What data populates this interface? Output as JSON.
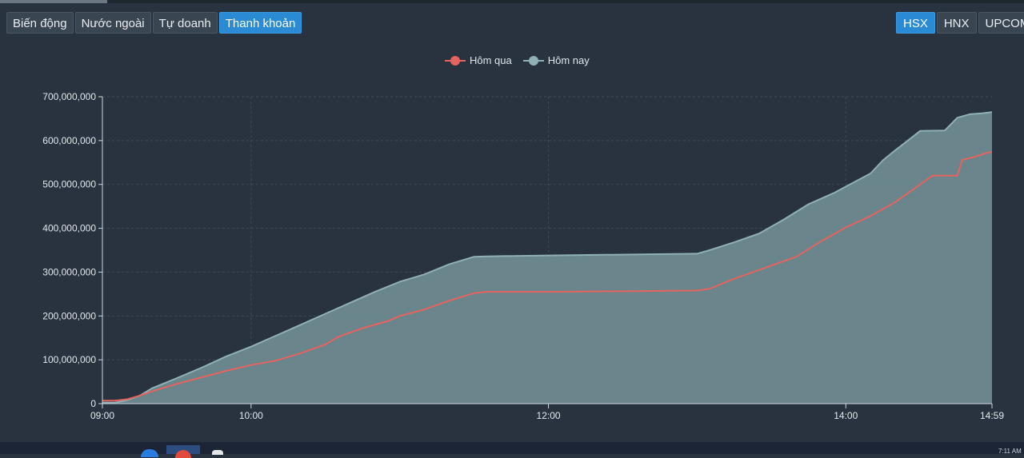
{
  "tabs": [
    {
      "label": "Biến động",
      "active": false
    },
    {
      "label": "Nước ngoài",
      "active": false
    },
    {
      "label": "Tự doanh",
      "active": false
    },
    {
      "label": "Thanh khoản",
      "active": true
    }
  ],
  "exchanges": [
    {
      "label": "HSX",
      "active": true
    },
    {
      "label": "HNX",
      "active": false
    },
    {
      "label": "UPCOM",
      "active": false
    }
  ],
  "clock": "7:11 AM",
  "colors": {
    "background": "#29323f",
    "active_button": "#2a8ad4",
    "today_line": "#8fb1b5",
    "today_fill": "#6e8a90",
    "yesterday_line": "#e5645f",
    "grid": "#3f4a58"
  },
  "chart_data": {
    "type": "area",
    "legend": [
      "Hôm qua",
      "Hôm nay"
    ],
    "legend_position": "top-center",
    "grid": true,
    "x_ticks": [
      "09:00",
      "10:00",
      "12:00",
      "14:00",
      "14:59"
    ],
    "y_ticks": [
      "0",
      "100,000,000",
      "200,000,000",
      "300,000,000",
      "400,000,000",
      "500,000,000",
      "600,000,000",
      "700,000,000"
    ],
    "xlim": [
      "09:00",
      "14:59"
    ],
    "ylim": [
      0,
      700000000
    ],
    "series": [
      {
        "name": "Hôm qua",
        "color": "#e5645f",
        "points": [
          [
            "09:00",
            7000000
          ],
          [
            "09:05",
            7000000
          ],
          [
            "09:10",
            10000000
          ],
          [
            "09:15",
            18000000
          ],
          [
            "09:20",
            28000000
          ],
          [
            "09:30",
            45000000
          ],
          [
            "09:40",
            60000000
          ],
          [
            "09:50",
            75000000
          ],
          [
            "10:00",
            88000000
          ],
          [
            "10:10",
            98000000
          ],
          [
            "10:20",
            115000000
          ],
          [
            "10:30",
            135000000
          ],
          [
            "10:35",
            152000000
          ],
          [
            "10:45",
            172000000
          ],
          [
            "10:55",
            188000000
          ],
          [
            "11:00",
            200000000
          ],
          [
            "11:10",
            215000000
          ],
          [
            "11:20",
            235000000
          ],
          [
            "11:30",
            252000000
          ],
          [
            "11:35",
            255000000
          ],
          [
            "12:00",
            255000000
          ],
          [
            "13:00",
            258000000
          ],
          [
            "13:05",
            262000000
          ],
          [
            "13:15",
            285000000
          ],
          [
            "13:30",
            315000000
          ],
          [
            "13:40",
            335000000
          ],
          [
            "13:50",
            370000000
          ],
          [
            "14:00",
            402000000
          ],
          [
            "14:10",
            428000000
          ],
          [
            "14:20",
            460000000
          ],
          [
            "14:25",
            480000000
          ],
          [
            "14:30",
            500000000
          ],
          [
            "14:35",
            520000000
          ],
          [
            "14:45",
            520000000
          ],
          [
            "14:47",
            556000000
          ],
          [
            "14:52",
            563000000
          ],
          [
            "14:57",
            572000000
          ],
          [
            "14:59",
            574000000
          ]
        ]
      },
      {
        "name": "Hôm nay",
        "color": "#8fb1b5",
        "points": [
          [
            "09:00",
            2000000
          ],
          [
            "09:05",
            2000000
          ],
          [
            "09:10",
            8000000
          ],
          [
            "09:15",
            18000000
          ],
          [
            "09:20",
            35000000
          ],
          [
            "09:30",
            58000000
          ],
          [
            "09:40",
            82000000
          ],
          [
            "09:50",
            108000000
          ],
          [
            "10:00",
            130000000
          ],
          [
            "10:10",
            155000000
          ],
          [
            "10:20",
            180000000
          ],
          [
            "10:30",
            205000000
          ],
          [
            "10:40",
            230000000
          ],
          [
            "10:50",
            255000000
          ],
          [
            "11:00",
            278000000
          ],
          [
            "11:10",
            295000000
          ],
          [
            "11:20",
            318000000
          ],
          [
            "11:30",
            335000000
          ],
          [
            "11:35",
            336000000
          ],
          [
            "12:00",
            338000000
          ],
          [
            "13:00",
            342000000
          ],
          [
            "13:05",
            350000000
          ],
          [
            "13:15",
            368000000
          ],
          [
            "13:25",
            388000000
          ],
          [
            "13:35",
            420000000
          ],
          [
            "13:45",
            455000000
          ],
          [
            "13:55",
            480000000
          ],
          [
            "14:00",
            495000000
          ],
          [
            "14:10",
            525000000
          ],
          [
            "14:15",
            555000000
          ],
          [
            "14:20",
            578000000
          ],
          [
            "14:25",
            600000000
          ],
          [
            "14:30",
            622000000
          ],
          [
            "14:40",
            623000000
          ],
          [
            "14:45",
            652000000
          ],
          [
            "14:50",
            660000000
          ],
          [
            "14:55",
            662000000
          ],
          [
            "14:59",
            665000000
          ]
        ]
      }
    ]
  }
}
